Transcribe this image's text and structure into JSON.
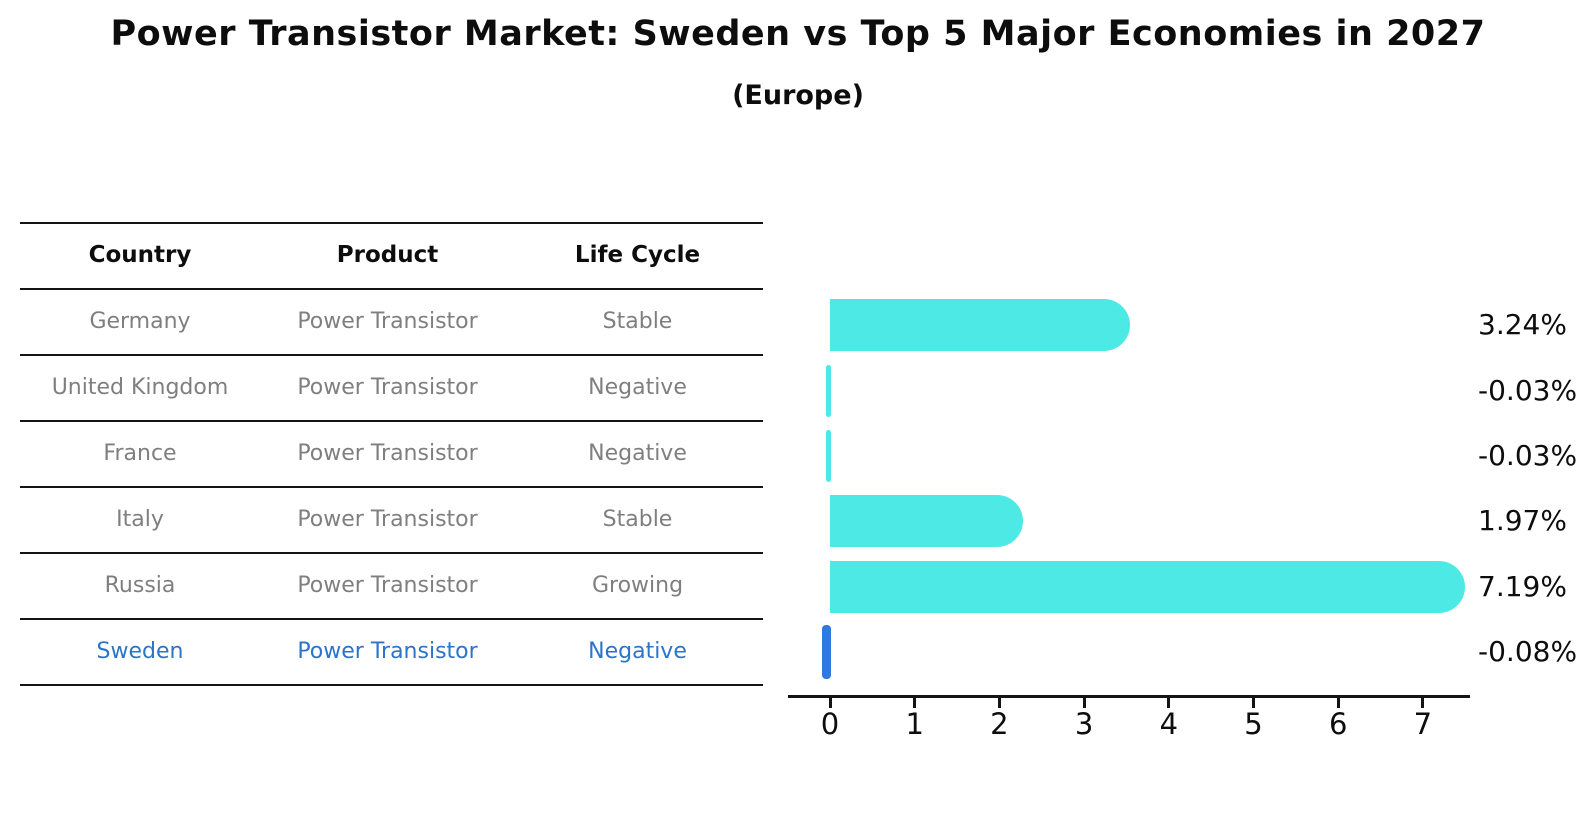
{
  "header": {
    "title": "Power Transistor Market: Sweden vs Top 5 Major Economies in 2027",
    "subtitle": "(Europe)"
  },
  "table": {
    "columns": [
      "Country",
      "Product",
      "Life Cycle"
    ],
    "rows": [
      {
        "country": "Germany",
        "product": "Power Transistor",
        "life_cycle": "Stable",
        "highlight": false
      },
      {
        "country": "United Kingdom",
        "product": "Power Transistor",
        "life_cycle": "Negative",
        "highlight": false
      },
      {
        "country": "France",
        "product": "Power Transistor",
        "life_cycle": "Negative",
        "highlight": false
      },
      {
        "country": "Italy",
        "product": "Power Transistor",
        "life_cycle": "Stable",
        "highlight": false
      },
      {
        "country": "Russia",
        "product": "Power Transistor",
        "life_cycle": "Growing",
        "highlight": false
      },
      {
        "country": "Sweden",
        "product": "Power Transistor",
        "life_cycle": "Negative",
        "highlight": true
      }
    ]
  },
  "chart_data": {
    "type": "bar",
    "orientation": "horizontal",
    "title": "Power Transistor Market: Sweden vs Top 5 Major Economies in 2027",
    "subtitle": "(Europe)",
    "categories": [
      "Germany",
      "United Kingdom",
      "France",
      "Italy",
      "Russia",
      "Sweden"
    ],
    "values": [
      3.24,
      -0.03,
      -0.03,
      1.97,
      7.19,
      -0.08
    ],
    "value_labels": [
      "3.24%",
      "-0.03%",
      "-0.03%",
      "1.97%",
      "7.19%",
      "-0.08%"
    ],
    "x_ticks": [
      0,
      1,
      2,
      3,
      4,
      5,
      6,
      7
    ],
    "xlim": [
      -0.4,
      7.55
    ],
    "grid": false,
    "legend": false,
    "highlight_index": 5,
    "bar_color_default": "#4de9e4",
    "bar_color_highlight": "#2e7bdf"
  },
  "colors": {
    "row_text_gray": "#7f7f7f",
    "highlight_text_blue": "#2b74c9",
    "axis_black": "#141414"
  }
}
